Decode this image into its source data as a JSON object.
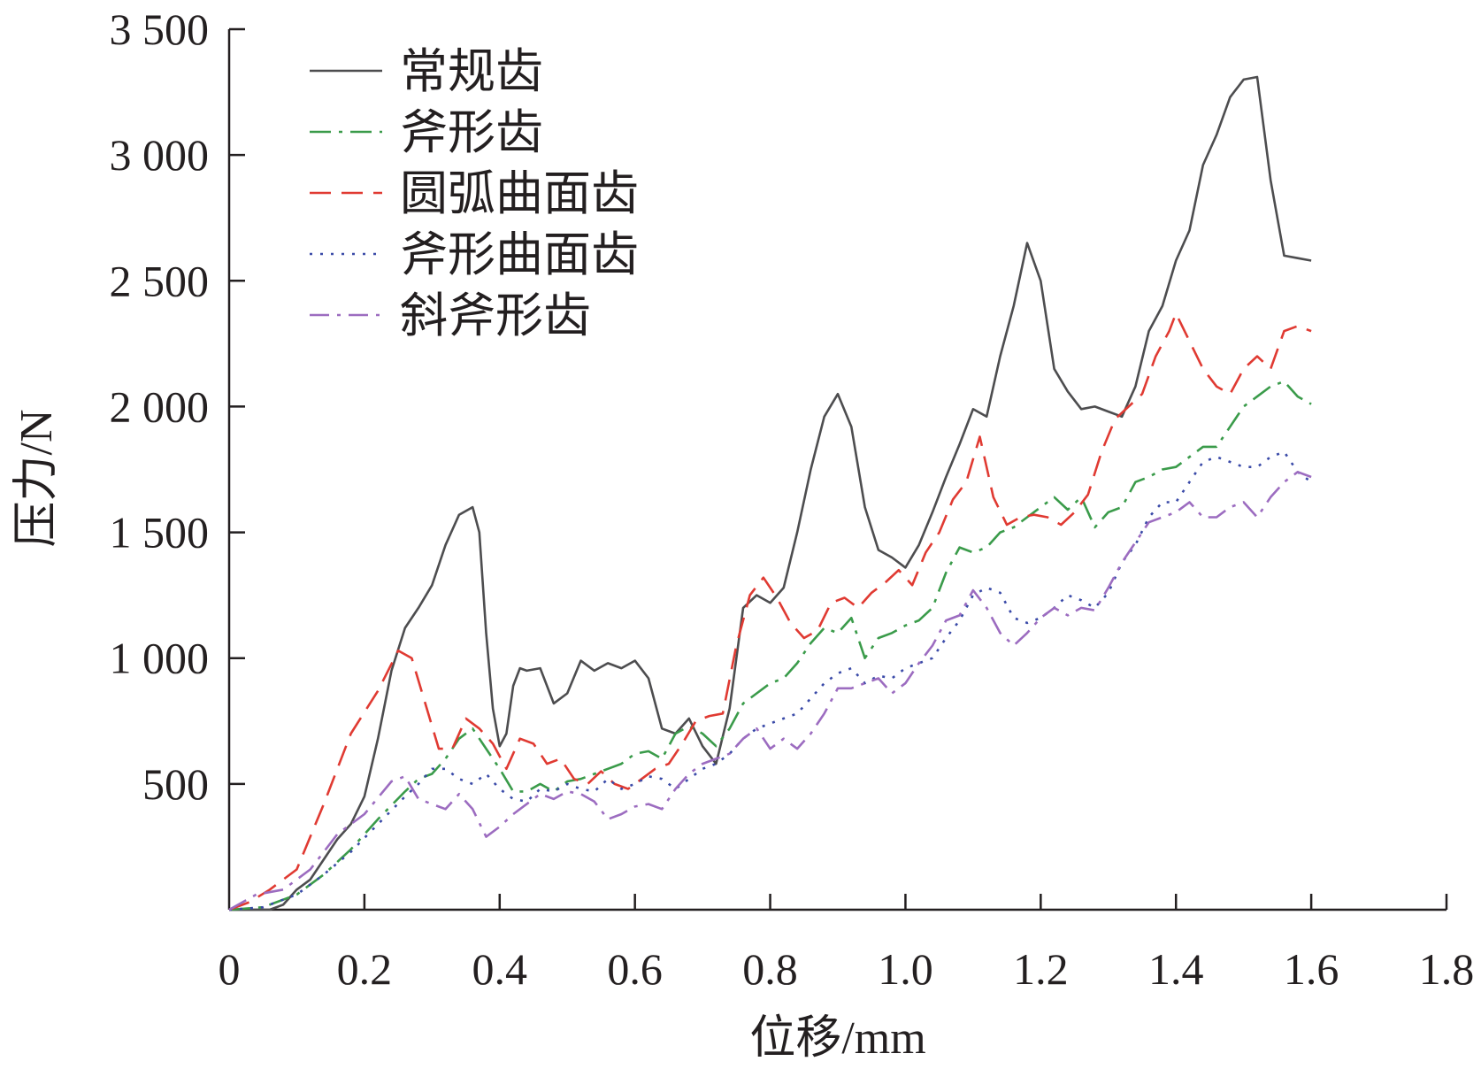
{
  "chart_data": {
    "type": "line",
    "xlabel": "位移/mm",
    "ylabel": "压力/N",
    "xlim": [
      0,
      1.8
    ],
    "ylim": [
      0,
      3500
    ],
    "x_ticks": [
      "0",
      "0.2",
      "0.4",
      "0.6",
      "0.8",
      "1.0",
      "1.2",
      "1.4",
      "1.6",
      "1.8"
    ],
    "x_tick_values": [
      0,
      0.2,
      0.4,
      0.6,
      0.8,
      1.0,
      1.2,
      1.4,
      1.6,
      1.8
    ],
    "y_ticks": [
      "500",
      "1 000",
      "1 500",
      "2 000",
      "2 500",
      "3 000",
      "3 500"
    ],
    "y_tick_values": [
      500,
      1000,
      1500,
      2000,
      2500,
      3000,
      3500
    ],
    "grid": false,
    "legend_position": "top-left",
    "series": [
      {
        "name": "常规齿",
        "color": "#4d4d4f",
        "dash": "solid",
        "x": [
          0,
          0.06,
          0.08,
          0.1,
          0.12,
          0.14,
          0.16,
          0.18,
          0.2,
          0.22,
          0.24,
          0.26,
          0.28,
          0.3,
          0.32,
          0.34,
          0.36,
          0.37,
          0.38,
          0.39,
          0.4,
          0.41,
          0.42,
          0.43,
          0.44,
          0.46,
          0.48,
          0.5,
          0.52,
          0.54,
          0.56,
          0.58,
          0.6,
          0.62,
          0.64,
          0.66,
          0.68,
          0.7,
          0.72,
          0.74,
          0.76,
          0.78,
          0.8,
          0.82,
          0.84,
          0.86,
          0.88,
          0.9,
          0.92,
          0.94,
          0.96,
          0.98,
          1.0,
          1.02,
          1.04,
          1.06,
          1.08,
          1.1,
          1.12,
          1.14,
          1.16,
          1.18,
          1.2,
          1.22,
          1.24,
          1.26,
          1.28,
          1.3,
          1.32,
          1.34,
          1.36,
          1.38,
          1.4,
          1.42,
          1.44,
          1.46,
          1.48,
          1.5,
          1.52,
          1.54,
          1.56,
          1.58,
          1.6
        ],
        "y": [
          0,
          0,
          20,
          80,
          120,
          200,
          280,
          340,
          450,
          680,
          950,
          1120,
          1200,
          1290,
          1450,
          1570,
          1600,
          1500,
          1100,
          800,
          650,
          700,
          890,
          960,
          950,
          960,
          820,
          860,
          990,
          950,
          980,
          960,
          990,
          920,
          720,
          700,
          760,
          650,
          580,
          800,
          1200,
          1250,
          1220,
          1280,
          1500,
          1750,
          1960,
          2050,
          1920,
          1600,
          1430,
          1400,
          1360,
          1450,
          1580,
          1720,
          1850,
          1990,
          1960,
          2200,
          2400,
          2650,
          2500,
          2150,
          2060,
          1990,
          2000,
          1980,
          1960,
          2080,
          2300,
          2400,
          2580,
          2700,
          2960,
          3080,
          3230,
          3300,
          3310,
          2900,
          2600,
          2590,
          2580
        ]
      },
      {
        "name": "斧形齿",
        "color": "#3a9b4a",
        "dash": "24,9,4,9",
        "x": [
          0,
          0.05,
          0.1,
          0.14,
          0.18,
          0.22,
          0.26,
          0.28,
          0.3,
          0.32,
          0.34,
          0.36,
          0.38,
          0.4,
          0.42,
          0.44,
          0.46,
          0.48,
          0.5,
          0.52,
          0.54,
          0.56,
          0.58,
          0.6,
          0.62,
          0.64,
          0.66,
          0.68,
          0.7,
          0.72,
          0.74,
          0.76,
          0.78,
          0.8,
          0.82,
          0.84,
          0.86,
          0.88,
          0.9,
          0.92,
          0.94,
          0.96,
          0.98,
          1.0,
          1.02,
          1.04,
          1.06,
          1.08,
          1.1,
          1.12,
          1.14,
          1.16,
          1.18,
          1.2,
          1.22,
          1.24,
          1.26,
          1.28,
          1.3,
          1.32,
          1.34,
          1.36,
          1.38,
          1.4,
          1.42,
          1.44,
          1.46,
          1.48,
          1.5,
          1.52,
          1.54,
          1.56,
          1.58,
          1.6
        ],
        "y": [
          0,
          10,
          60,
          140,
          240,
          360,
          470,
          520,
          540,
          600,
          680,
          720,
          640,
          560,
          470,
          470,
          500,
          470,
          510,
          520,
          540,
          560,
          580,
          620,
          630,
          600,
          700,
          730,
          700,
          650,
          720,
          820,
          860,
          900,
          920,
          980,
          1060,
          1120,
          1100,
          1160,
          1000,
          1080,
          1100,
          1130,
          1150,
          1200,
          1340,
          1440,
          1420,
          1440,
          1500,
          1520,
          1560,
          1600,
          1640,
          1590,
          1640,
          1520,
          1580,
          1600,
          1700,
          1720,
          1750,
          1760,
          1800,
          1840,
          1840,
          1920,
          2000,
          2040,
          2080,
          2100,
          2040,
          2010
        ]
      },
      {
        "name": "圆弧曲面齿",
        "color": "#e03a32",
        "dash": "24,12",
        "x": [
          0,
          0.03,
          0.06,
          0.1,
          0.14,
          0.18,
          0.22,
          0.25,
          0.27,
          0.29,
          0.31,
          0.33,
          0.35,
          0.37,
          0.39,
          0.41,
          0.43,
          0.45,
          0.47,
          0.49,
          0.51,
          0.53,
          0.55,
          0.57,
          0.59,
          0.61,
          0.63,
          0.65,
          0.67,
          0.69,
          0.71,
          0.73,
          0.75,
          0.77,
          0.79,
          0.81,
          0.83,
          0.85,
          0.87,
          0.89,
          0.91,
          0.93,
          0.95,
          0.97,
          0.99,
          1.01,
          1.03,
          1.05,
          1.07,
          1.09,
          1.11,
          1.13,
          1.15,
          1.17,
          1.19,
          1.21,
          1.23,
          1.25,
          1.27,
          1.29,
          1.31,
          1.33,
          1.35,
          1.37,
          1.39,
          1.4,
          1.42,
          1.44,
          1.46,
          1.48,
          1.5,
          1.52,
          1.54,
          1.56,
          1.58,
          1.6
        ],
        "y": [
          0,
          30,
          80,
          160,
          420,
          700,
          870,
          1030,
          1000,
          820,
          640,
          640,
          760,
          720,
          660,
          560,
          680,
          660,
          580,
          600,
          520,
          500,
          550,
          500,
          480,
          520,
          560,
          580,
          660,
          750,
          770,
          780,
          1050,
          1250,
          1320,
          1240,
          1140,
          1080,
          1110,
          1220,
          1240,
          1200,
          1260,
          1300,
          1350,
          1290,
          1420,
          1500,
          1630,
          1700,
          1880,
          1640,
          1530,
          1560,
          1570,
          1560,
          1530,
          1580,
          1650,
          1820,
          1950,
          2000,
          2050,
          2200,
          2300,
          2370,
          2260,
          2150,
          2080,
          2050,
          2150,
          2200,
          2150,
          2300,
          2320,
          2300
        ]
      },
      {
        "name": "斧形曲面齿",
        "color": "#3a4aa8",
        "dash": "3,9",
        "x": [
          0,
          0.05,
          0.1,
          0.14,
          0.18,
          0.22,
          0.26,
          0.28,
          0.3,
          0.32,
          0.34,
          0.36,
          0.38,
          0.4,
          0.42,
          0.44,
          0.46,
          0.48,
          0.5,
          0.52,
          0.54,
          0.56,
          0.58,
          0.6,
          0.62,
          0.64,
          0.66,
          0.68,
          0.7,
          0.72,
          0.74,
          0.76,
          0.78,
          0.8,
          0.82,
          0.84,
          0.86,
          0.88,
          0.9,
          0.92,
          0.94,
          0.96,
          0.98,
          1.0,
          1.02,
          1.04,
          1.06,
          1.08,
          1.1,
          1.12,
          1.14,
          1.16,
          1.18,
          1.2,
          1.22,
          1.24,
          1.26,
          1.28,
          1.3,
          1.32,
          1.34,
          1.36,
          1.38,
          1.4,
          1.42,
          1.44,
          1.46,
          1.48,
          1.5,
          1.52,
          1.54,
          1.56,
          1.58,
          1.6
        ],
        "y": [
          0,
          10,
          60,
          140,
          230,
          340,
          450,
          500,
          560,
          560,
          520,
          500,
          540,
          480,
          440,
          430,
          480,
          470,
          500,
          480,
          470,
          520,
          480,
          500,
          530,
          520,
          480,
          520,
          560,
          580,
          620,
          680,
          720,
          740,
          760,
          780,
          840,
          900,
          940,
          960,
          900,
          930,
          920,
          960,
          980,
          1000,
          1080,
          1150,
          1250,
          1280,
          1260,
          1160,
          1140,
          1160,
          1200,
          1250,
          1230,
          1200,
          1260,
          1380,
          1450,
          1560,
          1620,
          1620,
          1700,
          1780,
          1800,
          1780,
          1760,
          1760,
          1800,
          1820,
          1740,
          1700
        ]
      },
      {
        "name": "斜斧形齿",
        "color": "#9c6cc0",
        "dash": "22,9,4,9",
        "x": [
          0,
          0.04,
          0.08,
          0.12,
          0.16,
          0.2,
          0.24,
          0.26,
          0.28,
          0.3,
          0.32,
          0.34,
          0.36,
          0.38,
          0.4,
          0.42,
          0.44,
          0.46,
          0.48,
          0.5,
          0.52,
          0.54,
          0.56,
          0.58,
          0.6,
          0.62,
          0.64,
          0.66,
          0.68,
          0.7,
          0.72,
          0.74,
          0.76,
          0.78,
          0.8,
          0.82,
          0.84,
          0.86,
          0.88,
          0.9,
          0.92,
          0.94,
          0.96,
          0.98,
          1.0,
          1.02,
          1.04,
          1.06,
          1.08,
          1.1,
          1.12,
          1.14,
          1.16,
          1.18,
          1.2,
          1.22,
          1.24,
          1.26,
          1.28,
          1.3,
          1.32,
          1.34,
          1.36,
          1.38,
          1.4,
          1.42,
          1.44,
          1.46,
          1.48,
          1.5,
          1.52,
          1.54,
          1.56,
          1.58,
          1.6
        ],
        "y": [
          0,
          60,
          80,
          160,
          300,
          380,
          510,
          530,
          440,
          420,
          400,
          460,
          400,
          290,
          330,
          380,
          420,
          460,
          440,
          470,
          460,
          430,
          360,
          380,
          410,
          420,
          400,
          480,
          540,
          580,
          600,
          620,
          680,
          720,
          640,
          680,
          640,
          700,
          780,
          880,
          880,
          900,
          920,
          860,
          900,
          980,
          1050,
          1150,
          1170,
          1270,
          1200,
          1100,
          1050,
          1100,
          1160,
          1200,
          1170,
          1200,
          1190,
          1280,
          1380,
          1460,
          1540,
          1560,
          1580,
          1620,
          1560,
          1560,
          1600,
          1620,
          1560,
          1640,
          1700,
          1740,
          1720
        ]
      }
    ]
  }
}
